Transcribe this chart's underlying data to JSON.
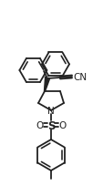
{
  "bg_color": "#ffffff",
  "line_color": "#222222",
  "lw": 1.3,
  "figsize": [
    1.02,
    2.05
  ],
  "dpi": 100,
  "xlim": [
    0,
    102
  ],
  "ylim": [
    0,
    205
  ]
}
